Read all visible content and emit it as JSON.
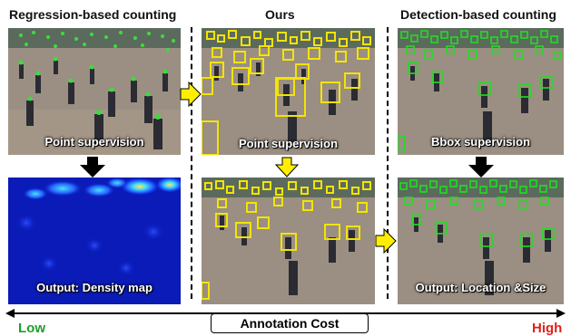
{
  "columns": [
    {
      "title": "Regression-based counting",
      "top_caption": "Point supervision",
      "bottom_caption": "Output: Density map"
    },
    {
      "title": "Ours",
      "top_caption": "Point supervision",
      "bottom_caption": ""
    },
    {
      "title": "Detection-based counting",
      "top_caption": "Bbox supervision",
      "bottom_caption": "Output: Location &Size"
    }
  ],
  "axis": {
    "label": "Annotation Cost",
    "low": "Low",
    "high": "High"
  },
  "colors": {
    "arrow_black": "#000000",
    "arrow_yellow": "#ffee00",
    "box_yellow": "#f4e400",
    "box_green": "#22dd22",
    "low_text": "#1e9e2a",
    "high_text": "#e0201c",
    "density_bg": "#0a1bb8"
  }
}
